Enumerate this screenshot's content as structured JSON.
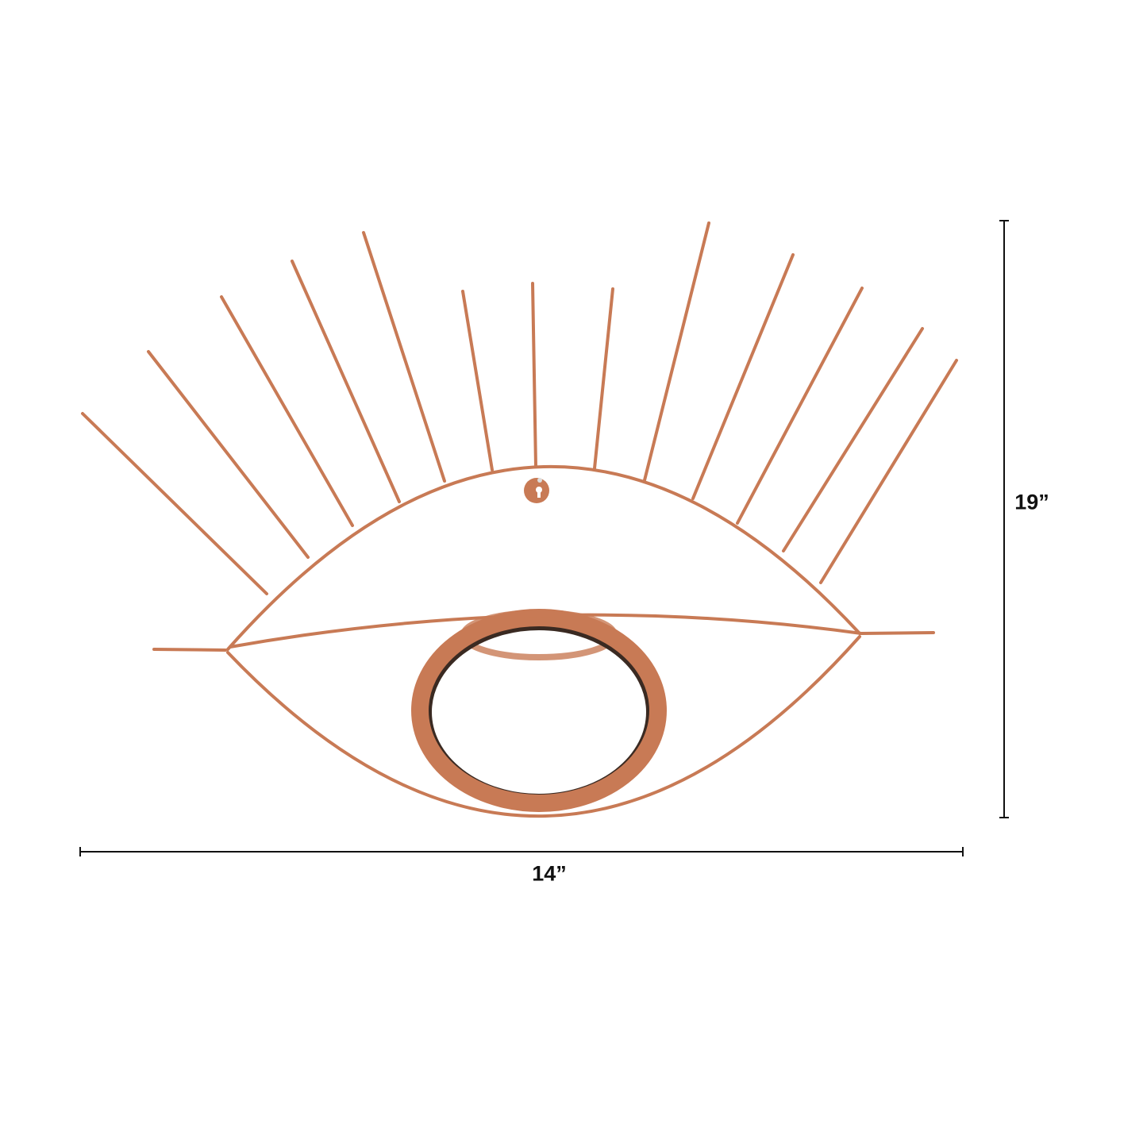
{
  "product": {
    "name": "",
    "material_color": "#c87a55",
    "mirror_color": "#3a2a22"
  },
  "dimensions": {
    "height_label": "19”",
    "width_label": "14”"
  }
}
